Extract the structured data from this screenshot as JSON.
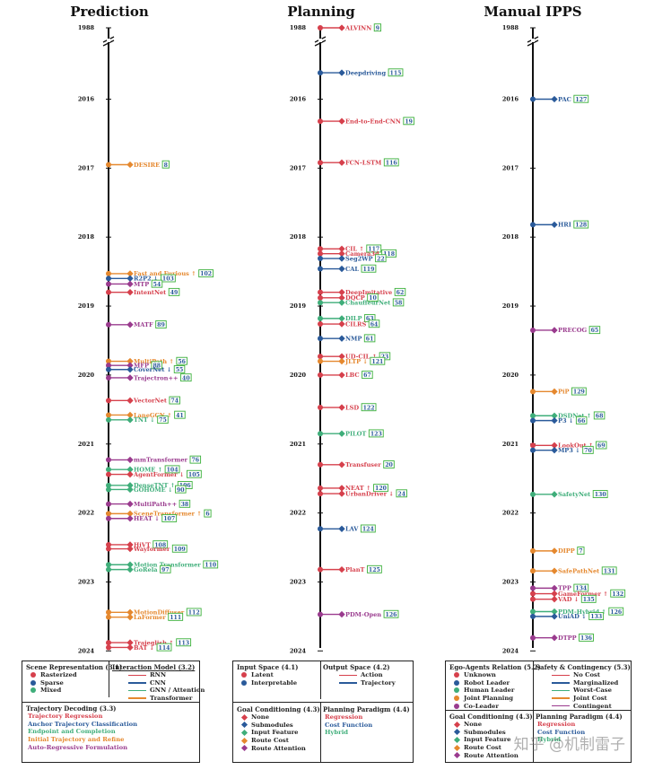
{
  "colors": {
    "red": "#d6404c",
    "blue": "#2a5a9a",
    "green": "#3fae7a",
    "orange": "#e5882e",
    "purple": "#9a3b8e",
    "box": "#3bb03b",
    "axis": "#111111"
  },
  "year_ticks": [
    "1988",
    "2016",
    "2017",
    "2018",
    "2019",
    "2020",
    "2021",
    "2022",
    "2023",
    "2024"
  ],
  "chart_data": [
    {
      "type": "timeline",
      "title": "Prediction",
      "year_range": [
        2016,
        2024
      ],
      "break_after": "1988",
      "entries": [
        {
          "label": "DESIRE",
          "ref": "8",
          "mark": "",
          "year": 2016.95,
          "color": "orange"
        },
        {
          "label": "Fast and Furious",
          "ref": "102",
          "mark": "↑",
          "year": 2018.53,
          "color": "orange"
        },
        {
          "label": "R2P2",
          "ref": "103",
          "mark": "↓",
          "year": 2018.6,
          "color": "blue"
        },
        {
          "label": "MTP",
          "ref": "54",
          "mark": "",
          "year": 2018.68,
          "color": "purple"
        },
        {
          "label": "IntentNet",
          "ref": "49",
          "mark": "",
          "year": 2018.8,
          "color": "red"
        },
        {
          "label": "MATF",
          "ref": "89",
          "mark": "",
          "year": 2019.27,
          "color": "purple"
        },
        {
          "label": "MultiPath",
          "ref": "56",
          "mark": "↑",
          "year": 2019.8,
          "color": "orange"
        },
        {
          "label": "MFP",
          "ref": "88",
          "mark": "",
          "year": 2019.86,
          "color": "purple"
        },
        {
          "label": "CoverNet",
          "ref": "55",
          "mark": "↓",
          "year": 2019.92,
          "color": "blue"
        },
        {
          "label": "Trajectron++",
          "ref": "40",
          "mark": "",
          "year": 2020.04,
          "color": "purple"
        },
        {
          "label": "VectorNet",
          "ref": "74",
          "mark": "",
          "year": 2020.37,
          "color": "red"
        },
        {
          "label": "LaneGCN",
          "ref": "41",
          "mark": "↑",
          "year": 2020.58,
          "color": "orange"
        },
        {
          "label": "TNT",
          "ref": "75",
          "mark": "↓",
          "year": 2020.65,
          "color": "green"
        },
        {
          "label": "mmTransformer",
          "ref": "76",
          "mark": "",
          "year": 2021.23,
          "color": "purple"
        },
        {
          "label": "HOME",
          "ref": "104",
          "mark": "↑",
          "year": 2021.37,
          "color": "green"
        },
        {
          "label": "AgentFormer",
          "ref": "105",
          "mark": "↓",
          "year": 2021.44,
          "color": "red"
        },
        {
          "label": "DenseTNT",
          "ref": "106",
          "mark": "↑",
          "year": 2021.6,
          "color": "green"
        },
        {
          "label": "GOHOME",
          "ref": "90",
          "mark": "↓",
          "year": 2021.66,
          "color": "green"
        },
        {
          "label": "MultiPath++",
          "ref": "38",
          "mark": "",
          "year": 2021.87,
          "color": "purple"
        },
        {
          "label": "SceneTransformer",
          "ref": "6",
          "mark": "↑",
          "year": 2022.01,
          "color": "orange"
        },
        {
          "label": "HEAT",
          "ref": "107",
          "mark": "↓",
          "year": 2022.08,
          "color": "purple"
        },
        {
          "label": "HiVT",
          "ref": "108",
          "mark": "",
          "year": 2022.46,
          "color": "red"
        },
        {
          "label": "Wayformer",
          "ref": "109",
          "mark": "",
          "year": 2022.52,
          "color": "red"
        },
        {
          "label": "Motion Transformer",
          "ref": "110",
          "mark": "",
          "year": 2022.75,
          "color": "green"
        },
        {
          "label": "GoRela",
          "ref": "97",
          "mark": "",
          "year": 2022.82,
          "color": "green"
        },
        {
          "label": "MotionDiffuser",
          "ref": "112",
          "mark": "",
          "year": 2023.44,
          "color": "orange"
        },
        {
          "label": "LaFormer",
          "ref": "111",
          "mark": "",
          "year": 2023.51,
          "color": "orange"
        },
        {
          "label": "Trajeglish",
          "ref": "113",
          "mark": "↑",
          "year": 2023.88,
          "color": "red"
        },
        {
          "label": "BAT",
          "ref": "114",
          "mark": "↓",
          "year": 2023.95,
          "color": "red"
        }
      ]
    },
    {
      "type": "timeline",
      "title": "Planning",
      "year_range": [
        2016,
        2024
      ],
      "break_after": "1988",
      "entries": [
        {
          "label": "ALVINN",
          "ref": "9",
          "mark": "",
          "year": 1988,
          "color": "red"
        },
        {
          "label": "Deepdriving",
          "ref": "115",
          "mark": "",
          "year": 2015.63,
          "color": "blue"
        },
        {
          "label": "End-to-End-CNN",
          "ref": "19",
          "mark": "",
          "year": 2016.32,
          "color": "red"
        },
        {
          "label": "FCN-LSTM",
          "ref": "116",
          "mark": "",
          "year": 2016.92,
          "color": "red"
        },
        {
          "label": "CIL",
          "ref": "117",
          "mark": "↑",
          "year": 2018.17,
          "color": "red"
        },
        {
          "label": "Camera3d",
          "ref": "118",
          "mark": "",
          "year": 2018.24,
          "color": "red"
        },
        {
          "label": "Seg2WP",
          "ref": "22",
          "mark": "",
          "year": 2018.31,
          "color": "blue"
        },
        {
          "label": "CAL",
          "ref": "119",
          "mark": "",
          "year": 2018.46,
          "color": "blue"
        },
        {
          "label": "DeepImitative",
          "ref": "62",
          "mark": "",
          "year": 2018.8,
          "color": "red"
        },
        {
          "label": "DQCP",
          "ref": "10",
          "mark": "",
          "year": 2018.88,
          "color": "red"
        },
        {
          "label": "ChauffeurNet",
          "ref": "58",
          "mark": "",
          "year": 2018.95,
          "color": "green"
        },
        {
          "label": "DILP",
          "ref": "63",
          "mark": "",
          "year": 2019.18,
          "color": "green"
        },
        {
          "label": "CILRS",
          "ref": "64",
          "mark": "",
          "year": 2019.26,
          "color": "red"
        },
        {
          "label": "NMP",
          "ref": "61",
          "mark": "",
          "year": 2019.47,
          "color": "blue"
        },
        {
          "label": "UD-CIL",
          "ref": "23",
          "mark": "↑",
          "year": 2019.73,
          "color": "red"
        },
        {
          "label": "JLTP",
          "ref": "121",
          "mark": "↓",
          "year": 2019.8,
          "color": "orange"
        },
        {
          "label": "LBC",
          "ref": "67",
          "mark": "",
          "year": 2020.0,
          "color": "red"
        },
        {
          "label": "LSD",
          "ref": "122",
          "mark": "",
          "year": 2020.47,
          "color": "red"
        },
        {
          "label": "PILOT",
          "ref": "123",
          "mark": "",
          "year": 2020.85,
          "color": "green"
        },
        {
          "label": "Transfuser",
          "ref": "20",
          "mark": "",
          "year": 2021.3,
          "color": "red"
        },
        {
          "label": "NEAT",
          "ref": "120",
          "mark": "↑",
          "year": 2021.64,
          "color": "red"
        },
        {
          "label": "UrbanDriver",
          "ref": "24",
          "mark": "↓",
          "year": 2021.72,
          "color": "red"
        },
        {
          "label": "LAV",
          "ref": "124",
          "mark": "",
          "year": 2022.23,
          "color": "blue"
        },
        {
          "label": "PlanT",
          "ref": "125",
          "mark": "",
          "year": 2022.82,
          "color": "red"
        },
        {
          "label": "PDM-Open",
          "ref": "126",
          "mark": "",
          "year": 2023.47,
          "color": "purple"
        }
      ]
    },
    {
      "type": "timeline",
      "title": "Manual IPPS",
      "year_range": [
        2016,
        2024
      ],
      "break_after": "1988",
      "entries": [
        {
          "label": "PAC",
          "ref": "127",
          "mark": "",
          "year": 2016.0,
          "color": "blue"
        },
        {
          "label": "HRI",
          "ref": "128",
          "mark": "",
          "year": 2017.82,
          "color": "blue"
        },
        {
          "label": "PRECOG",
          "ref": "65",
          "mark": "",
          "year": 2019.35,
          "color": "purple"
        },
        {
          "label": "PiP",
          "ref": "129",
          "mark": "",
          "year": 2020.24,
          "color": "orange"
        },
        {
          "label": "DSDNet",
          "ref": "68",
          "mark": "↑",
          "year": 2020.59,
          "color": "green"
        },
        {
          "label": "P3",
          "ref": "66",
          "mark": "↓",
          "year": 2020.66,
          "color": "blue"
        },
        {
          "label": "LookOut",
          "ref": "69",
          "mark": "↑",
          "year": 2021.02,
          "color": "red"
        },
        {
          "label": "MP3",
          "ref": "70",
          "mark": "↓",
          "year": 2021.09,
          "color": "blue"
        },
        {
          "label": "SafetyNet",
          "ref": "130",
          "mark": "",
          "year": 2021.73,
          "color": "green"
        },
        {
          "label": "DIPP",
          "ref": "7",
          "mark": "",
          "year": 2022.55,
          "color": "orange"
        },
        {
          "label": "SafePathNet",
          "ref": "131",
          "mark": "",
          "year": 2022.84,
          "color": "orange"
        },
        {
          "label": "TPP",
          "ref": "134",
          "mark": "",
          "year": 2023.09,
          "color": "purple"
        },
        {
          "label": "GameFormer",
          "ref": "132",
          "mark": "↑",
          "year": 2023.17,
          "color": "red"
        },
        {
          "label": "VAD",
          "ref": "135",
          "mark": "↓",
          "year": 2023.25,
          "color": "red"
        },
        {
          "label": "PDM-Hybrid",
          "ref": "126",
          "mark": "↑",
          "year": 2023.43,
          "color": "green"
        },
        {
          "label": "UniAD",
          "ref": "133",
          "mark": "↓",
          "year": 2023.5,
          "color": "blue"
        },
        {
          "label": "DTPP",
          "ref": "136",
          "mark": "",
          "year": 2023.81,
          "color": "purple"
        }
      ]
    }
  ],
  "legends": {
    "prediction": {
      "scene_title": "Scene Representation (3.1)",
      "scene_items": [
        {
          "label": "Rasterized",
          "color": "#d6404c"
        },
        {
          "label": "Sparse",
          "color": "#2a5a9a"
        },
        {
          "label": "Mixed",
          "color": "#3fae7a"
        }
      ],
      "interaction_title": "Interaction Model (3.2)",
      "interaction_items": [
        {
          "label": "RNN",
          "color": "#d6404c"
        },
        {
          "label": "CNN",
          "color": "#2a5a9a"
        },
        {
          "label": "GNN / Attention",
          "color": "#3fae7a"
        },
        {
          "label": "Transformer",
          "color": "#e5882e"
        }
      ],
      "decoding_title": "Trajectory Decoding (3.3)",
      "decoding_items": [
        {
          "label": "Trajectory Regression",
          "color": "#d6404c"
        },
        {
          "label": "Anchor Trajectory Classification",
          "color": "#2a5a9a"
        },
        {
          "label": "Endpoint and Completion",
          "color": "#3fae7a"
        },
        {
          "label": "Initial Trajectory and Refine",
          "color": "#e5882e"
        },
        {
          "label": "Auto-Regressive Formulation",
          "color": "#9a3b8e"
        }
      ]
    },
    "planning": {
      "input_title": "Input Space (4.1)",
      "input_items": [
        {
          "label": "Latent",
          "color": "#d6404c"
        },
        {
          "label": "Interpretable",
          "color": "#2a5a9a"
        }
      ],
      "output_title": "Output Space (4.2)",
      "output_items": [
        {
          "label": "Action",
          "color": "#d6404c"
        },
        {
          "label": "Trajectory",
          "color": "#2a5a9a"
        }
      ],
      "goal_title": "Goal Conditioning (4.3)",
      "goal_items": [
        {
          "label": "None",
          "color": "#d6404c"
        },
        {
          "label": "Submodules",
          "color": "#2a5a9a"
        },
        {
          "label": "Input Feature",
          "color": "#3fae7a"
        },
        {
          "label": "Route Cost",
          "color": "#e5882e"
        },
        {
          "label": "Route Attention",
          "color": "#9a3b8e"
        }
      ],
      "paradigm_title": "Planning Paradigm (4.4)",
      "paradigm_items": [
        {
          "label": "Regression",
          "color": "#d6404c"
        },
        {
          "label": "Cost Function",
          "color": "#2a5a9a"
        },
        {
          "label": "Hybrid",
          "color": "#3fae7a"
        }
      ]
    },
    "ipps": {
      "ego_title": "Ego-Agents Relation (5.2)",
      "ego_items": [
        {
          "label": "Unknown",
          "color": "#d6404c"
        },
        {
          "label": "Robot Leader",
          "color": "#2a5a9a"
        },
        {
          "label": "Human Leader",
          "color": "#3fae7a"
        },
        {
          "label": "Joint Planning",
          "color": "#e5882e"
        },
        {
          "label": "Co-Leader",
          "color": "#9a3b8e"
        }
      ],
      "safety_title": "Safety & Contingency (5.3)",
      "safety_items": [
        {
          "label": "No Cost",
          "color": "#d6404c"
        },
        {
          "label": "Marginalized",
          "color": "#2a5a9a"
        },
        {
          "label": "Worst-Case",
          "color": "#3fae7a"
        },
        {
          "label": "Joint Cost",
          "color": "#e5882e"
        },
        {
          "label": "Contingent",
          "color": "#9a3b8e"
        }
      ],
      "goal_title": "Goal Conditioning (4.3)",
      "goal_items": [
        {
          "label": "None",
          "color": "#d6404c"
        },
        {
          "label": "Submodules",
          "color": "#2a5a9a"
        },
        {
          "label": "Input Feature",
          "color": "#3fae7a"
        },
        {
          "label": "Route Cost",
          "color": "#e5882e"
        },
        {
          "label": "Route Attention",
          "color": "#9a3b8e"
        }
      ],
      "paradigm_title": "Planning Paradigm (4.4)",
      "paradigm_items": [
        {
          "label": "Regression",
          "color": "#d6404c"
        },
        {
          "label": "Cost Function",
          "color": "#2a5a9a"
        },
        {
          "label": "Hybrid",
          "color": "#3fae7a"
        }
      ]
    }
  },
  "watermark": "知乎 @机制雷子"
}
